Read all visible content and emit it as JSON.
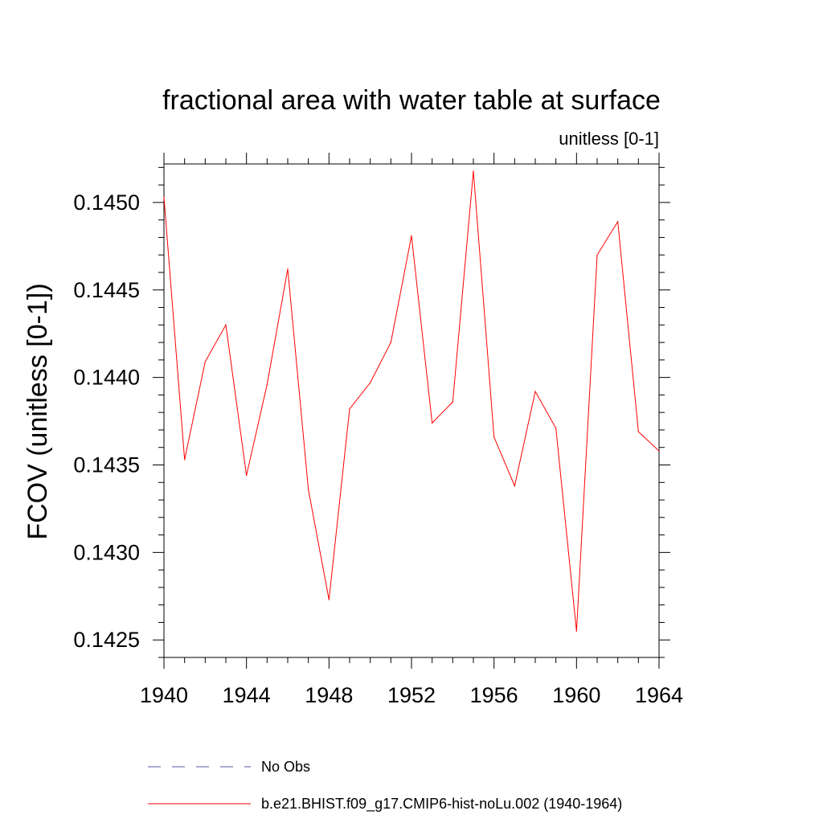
{
  "chart_data": {
    "type": "line",
    "title": "fractional area with water table at surface",
    "subtitle": "unitless [0-1]",
    "ylabel": "FCOV  (unitless [0-1])",
    "xlabel": "",
    "xlim": [
      1940,
      1964
    ],
    "ylim": [
      0.1424,
      0.14522
    ],
    "x_ticks": [
      1940,
      1944,
      1948,
      1952,
      1956,
      1960,
      1964
    ],
    "y_ticks": [
      0.1425,
      0.143,
      0.1435,
      0.144,
      0.1445,
      0.145
    ],
    "x_tick_labels": [
      "1940",
      "1944",
      "1948",
      "1952",
      "1956",
      "1960",
      "1964"
    ],
    "y_tick_labels": [
      "0.1425",
      "0.1430",
      "0.1435",
      "0.1440",
      "0.1445",
      "0.1450"
    ],
    "grid": false,
    "legend_placement": "bottom",
    "series": [
      {
        "name": "b.e21.BHIST.f09_g17.CMIP6-hist-noLu.002 (1940-1964)",
        "color": "#ff0000",
        "x": [
          1940,
          1941,
          1942,
          1943,
          1944,
          1945,
          1946,
          1947,
          1948,
          1949,
          1950,
          1951,
          1952,
          1953,
          1954,
          1955,
          1956,
          1957,
          1958,
          1959,
          1960,
          1961,
          1962,
          1963,
          1964
        ],
        "y": [
          0.14503,
          0.14353,
          0.14409,
          0.1443,
          0.14344,
          0.14396,
          0.14462,
          0.14336,
          0.14273,
          0.14382,
          0.14397,
          0.1442,
          0.14481,
          0.14374,
          0.14386,
          0.14518,
          0.14366,
          0.14338,
          0.14392,
          0.14371,
          0.14255,
          0.1447,
          0.14489,
          0.14369,
          0.14358
        ]
      }
    ],
    "legend": [
      {
        "label": "No Obs",
        "color": "#5555aa",
        "style": "dashed"
      },
      {
        "label": "b.e21.BHIST.f09_g17.CMIP6-hist-noLu.002 (1940-1964)",
        "color": "#ff0000",
        "style": "solid"
      }
    ]
  }
}
